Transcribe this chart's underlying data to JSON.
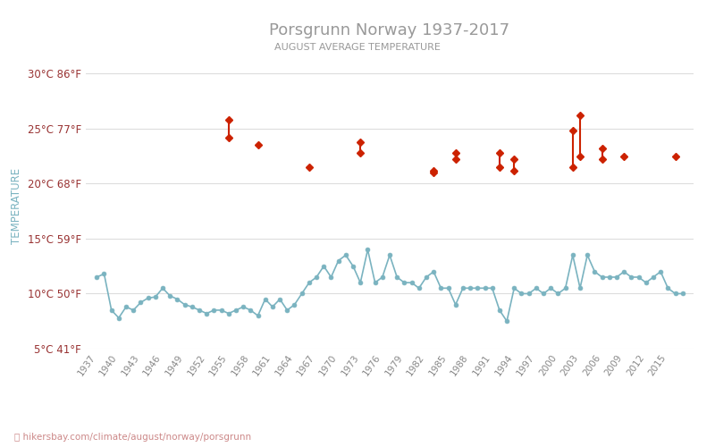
{
  "title": "Porsgrunn Norway 1937-2017",
  "subtitle": "AUGUST AVERAGE TEMPERATURE",
  "ylabel": "TEMPERATURE",
  "ylabel_color": "#7ab3c0",
  "title_color": "#999999",
  "subtitle_color": "#999999",
  "bg_color": "#ffffff",
  "grid_color": "#dddddd",
  "night_color": "#7ab3c0",
  "day_color": "#cc2200",
  "xlim": [
    1935.5,
    2018.5
  ],
  "ylim": [
    5,
    31
  ],
  "yticks_c": [
    5,
    10,
    15,
    20,
    25,
    30
  ],
  "yticks_f": [
    41,
    50,
    59,
    68,
    77,
    86
  ],
  "xticks": [
    1937,
    1940,
    1943,
    1946,
    1949,
    1952,
    1955,
    1958,
    1961,
    1964,
    1967,
    1970,
    1973,
    1976,
    1979,
    1982,
    1985,
    1988,
    1991,
    1994,
    1997,
    2000,
    2003,
    2006,
    2009,
    2012,
    2015
  ],
  "night_years": [
    1937,
    1938,
    1939,
    1940,
    1941,
    1942,
    1943,
    1944,
    1945,
    1946,
    1947,
    1948,
    1949,
    1950,
    1951,
    1952,
    1953,
    1954,
    1955,
    1956,
    1957,
    1958,
    1959,
    1960,
    1961,
    1962,
    1963,
    1964,
    1965,
    1966,
    1967,
    1968,
    1969,
    1970,
    1971,
    1972,
    1973,
    1974,
    1975,
    1976,
    1977,
    1978,
    1979,
    1980,
    1981,
    1982,
    1983,
    1984,
    1985,
    1986,
    1987,
    1988,
    1989,
    1990,
    1991,
    1992,
    1993,
    1994,
    1995,
    1996,
    1997,
    1998,
    1999,
    2000,
    2001,
    2002,
    2003,
    2004,
    2005,
    2006,
    2007,
    2008,
    2009,
    2010,
    2011,
    2012,
    2013,
    2014,
    2015,
    2016,
    2017
  ],
  "night_temps": [
    11.5,
    11.8,
    8.5,
    7.8,
    8.8,
    8.5,
    9.2,
    9.6,
    9.7,
    10.5,
    9.8,
    9.5,
    9.0,
    8.8,
    8.5,
    8.2,
    8.5,
    8.5,
    8.2,
    8.5,
    8.8,
    8.5,
    8.0,
    9.5,
    8.8,
    9.5,
    8.5,
    9.0,
    10.0,
    11.0,
    11.5,
    12.5,
    11.5,
    13.0,
    13.5,
    12.5,
    11.0,
    14.0,
    11.0,
    11.5,
    13.5,
    11.5,
    11.0,
    11.0,
    10.5,
    11.5,
    12.0,
    10.5,
    10.5,
    9.0,
    10.5,
    10.5,
    10.5,
    10.5,
    10.5,
    8.5,
    7.5,
    10.5,
    10.0,
    10.0,
    10.5,
    10.0,
    10.5,
    10.0,
    10.5,
    13.5,
    10.5,
    13.5,
    12.0,
    11.5,
    11.5,
    11.5,
    12.0,
    11.5,
    11.5,
    11.0,
    11.5,
    12.0,
    10.5,
    10.0,
    10.0
  ],
  "day_data": [
    {
      "year": 1955,
      "temps": [
        25.8,
        24.2
      ]
    },
    {
      "year": 1959,
      "temps": [
        23.5
      ]
    },
    {
      "year": 1966,
      "temps": [
        21.5
      ]
    },
    {
      "year": 1973,
      "temps": [
        23.8,
        22.8
      ]
    },
    {
      "year": 1983,
      "temps": [
        21.2,
        21.0
      ]
    },
    {
      "year": 1986,
      "temps": [
        22.8,
        22.2
      ]
    },
    {
      "year": 1992,
      "temps": [
        22.8,
        21.5
      ]
    },
    {
      "year": 1994,
      "temps": [
        22.2,
        21.2
      ]
    },
    {
      "year": 2002,
      "temps": [
        24.8,
        21.5
      ]
    },
    {
      "year": 2003,
      "temps": [
        26.2,
        22.5
      ]
    },
    {
      "year": 2006,
      "temps": [
        23.2,
        22.2
      ]
    },
    {
      "year": 2009,
      "temps": [
        22.5
      ]
    },
    {
      "year": 2016,
      "temps": [
        22.5
      ]
    }
  ],
  "url_text": "hikersbay.com/climate/august/norway/porsgrunn",
  "url_color": "#cc8888",
  "pin_color": "#ff6633",
  "figsize": [
    8.0,
    5.0
  ],
  "dpi": 100
}
